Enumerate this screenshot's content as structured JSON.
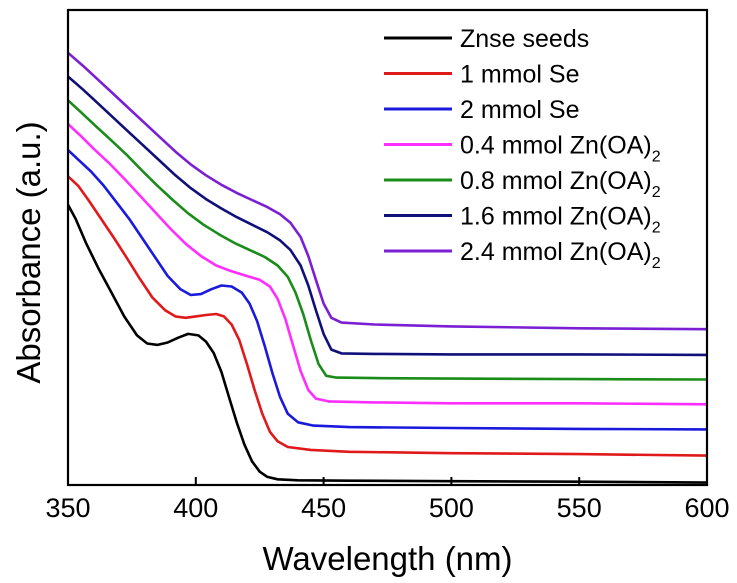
{
  "chart_data": {
    "type": "line",
    "title": "",
    "xlabel": "Wavelength (nm)",
    "ylabel": "Absorbance (a.u.)",
    "xlim": [
      350,
      600
    ],
    "ylim": [
      0,
      10
    ],
    "xticks": [
      350,
      400,
      450,
      500,
      550,
      600
    ],
    "yticks_shown": false,
    "grid": false,
    "legend_position": "top-right",
    "series": [
      {
        "name": "Znse seeds",
        "legend_main": "Znse seeds",
        "legend_sub": "",
        "color": "#000000",
        "points": [
          [
            350,
            5.9
          ],
          [
            353,
            5.6
          ],
          [
            357,
            5.1
          ],
          [
            362,
            4.55
          ],
          [
            367,
            4.05
          ],
          [
            372,
            3.55
          ],
          [
            377,
            3.15
          ],
          [
            381,
            2.98
          ],
          [
            385,
            2.95
          ],
          [
            389,
            3.0
          ],
          [
            393,
            3.1
          ],
          [
            397,
            3.18
          ],
          [
            401,
            3.15
          ],
          [
            404,
            3.02
          ],
          [
            407,
            2.78
          ],
          [
            410,
            2.38
          ],
          [
            413,
            1.85
          ],
          [
            416,
            1.32
          ],
          [
            419,
            0.85
          ],
          [
            422,
            0.5
          ],
          [
            425,
            0.28
          ],
          [
            428,
            0.17
          ],
          [
            432,
            0.12
          ],
          [
            440,
            0.1
          ],
          [
            460,
            0.09
          ],
          [
            500,
            0.08
          ],
          [
            550,
            0.07
          ],
          [
            600,
            0.05
          ]
        ]
      },
      {
        "name": "1 mmol Se",
        "legend_main": "1 mmol Se",
        "legend_sub": "",
        "color": "#e0191b",
        "points": [
          [
            350,
            6.5
          ],
          [
            354,
            6.3
          ],
          [
            358,
            6.0
          ],
          [
            363,
            5.6
          ],
          [
            368,
            5.2
          ],
          [
            373,
            4.78
          ],
          [
            378,
            4.35
          ],
          [
            383,
            3.95
          ],
          [
            388,
            3.68
          ],
          [
            392,
            3.55
          ],
          [
            396,
            3.52
          ],
          [
            400,
            3.55
          ],
          [
            404,
            3.58
          ],
          [
            408,
            3.6
          ],
          [
            411,
            3.55
          ],
          [
            414,
            3.38
          ],
          [
            417,
            3.05
          ],
          [
            420,
            2.55
          ],
          [
            423,
            2.0
          ],
          [
            426,
            1.5
          ],
          [
            429,
            1.12
          ],
          [
            432,
            0.92
          ],
          [
            436,
            0.8
          ],
          [
            445,
            0.74
          ],
          [
            460,
            0.7
          ],
          [
            500,
            0.67
          ],
          [
            550,
            0.65
          ],
          [
            600,
            0.62
          ]
        ]
      },
      {
        "name": "2 mmol Se",
        "legend_main": "2 mmol Se",
        "legend_sub": "",
        "color": "#1a1adc",
        "points": [
          [
            350,
            7.05
          ],
          [
            354,
            6.85
          ],
          [
            359,
            6.6
          ],
          [
            364,
            6.3
          ],
          [
            369,
            5.95
          ],
          [
            374,
            5.6
          ],
          [
            379,
            5.2
          ],
          [
            384,
            4.8
          ],
          [
            389,
            4.4
          ],
          [
            394,
            4.12
          ],
          [
            398,
            4.0
          ],
          [
            402,
            4.02
          ],
          [
            406,
            4.12
          ],
          [
            410,
            4.2
          ],
          [
            414,
            4.18
          ],
          [
            418,
            4.05
          ],
          [
            421,
            3.82
          ],
          [
            424,
            3.45
          ],
          [
            427,
            2.92
          ],
          [
            430,
            2.35
          ],
          [
            433,
            1.85
          ],
          [
            436,
            1.5
          ],
          [
            440,
            1.32
          ],
          [
            446,
            1.25
          ],
          [
            460,
            1.22
          ],
          [
            500,
            1.2
          ],
          [
            550,
            1.18
          ],
          [
            600,
            1.17
          ]
        ]
      },
      {
        "name": "0.4 mmol Zn(OA)2",
        "legend_main": "0.4 mmol Zn(OA)",
        "legend_sub": "2",
        "color": "#ff2dff",
        "points": [
          [
            350,
            7.6
          ],
          [
            355,
            7.35
          ],
          [
            360,
            7.08
          ],
          [
            366,
            6.78
          ],
          [
            372,
            6.45
          ],
          [
            378,
            6.1
          ],
          [
            384,
            5.75
          ],
          [
            390,
            5.4
          ],
          [
            396,
            5.08
          ],
          [
            402,
            4.82
          ],
          [
            408,
            4.62
          ],
          [
            414,
            4.5
          ],
          [
            420,
            4.4
          ],
          [
            425,
            4.32
          ],
          [
            429,
            4.18
          ],
          [
            432,
            3.92
          ],
          [
            435,
            3.5
          ],
          [
            438,
            2.95
          ],
          [
            441,
            2.4
          ],
          [
            444,
            2.0
          ],
          [
            447,
            1.82
          ],
          [
            452,
            1.76
          ],
          [
            470,
            1.74
          ],
          [
            500,
            1.72
          ],
          [
            550,
            1.72
          ],
          [
            600,
            1.7
          ]
        ]
      },
      {
        "name": "0.8 mmol Zn(OA)2",
        "legend_main": "0.8 mmol Zn(OA)",
        "legend_sub": "2",
        "color": "#1a8c1a",
        "points": [
          [
            350,
            8.1
          ],
          [
            355,
            7.85
          ],
          [
            361,
            7.55
          ],
          [
            367,
            7.25
          ],
          [
            373,
            6.95
          ],
          [
            379,
            6.62
          ],
          [
            385,
            6.3
          ],
          [
            391,
            6.0
          ],
          [
            397,
            5.72
          ],
          [
            403,
            5.48
          ],
          [
            409,
            5.28
          ],
          [
            415,
            5.1
          ],
          [
            421,
            4.95
          ],
          [
            427,
            4.8
          ],
          [
            432,
            4.62
          ],
          [
            436,
            4.38
          ],
          [
            439,
            4.05
          ],
          [
            442,
            3.6
          ],
          [
            445,
            3.05
          ],
          [
            448,
            2.55
          ],
          [
            451,
            2.3
          ],
          [
            455,
            2.26
          ],
          [
            470,
            2.25
          ],
          [
            500,
            2.24
          ],
          [
            550,
            2.23
          ],
          [
            600,
            2.22
          ]
        ]
      },
      {
        "name": "1.6 mmol Zn(OA)2",
        "legend_main": "1.6 mmol Zn(OA)",
        "legend_sub": "2",
        "color": "#10107a",
        "points": [
          [
            350,
            8.6
          ],
          [
            356,
            8.32
          ],
          [
            362,
            8.02
          ],
          [
            368,
            7.72
          ],
          [
            374,
            7.42
          ],
          [
            380,
            7.12
          ],
          [
            386,
            6.82
          ],
          [
            392,
            6.52
          ],
          [
            398,
            6.25
          ],
          [
            404,
            6.02
          ],
          [
            410,
            5.82
          ],
          [
            416,
            5.64
          ],
          [
            422,
            5.48
          ],
          [
            428,
            5.32
          ],
          [
            433,
            5.15
          ],
          [
            437,
            4.95
          ],
          [
            441,
            4.62
          ],
          [
            444,
            4.2
          ],
          [
            447,
            3.68
          ],
          [
            450,
            3.18
          ],
          [
            453,
            2.85
          ],
          [
            457,
            2.77
          ],
          [
            470,
            2.76
          ],
          [
            500,
            2.75
          ],
          [
            550,
            2.75
          ],
          [
            600,
            2.74
          ]
        ]
      },
      {
        "name": "2.4 mmol Zn(OA)2",
        "legend_main": "2.4 mmol Zn(OA)",
        "legend_sub": "2",
        "color": "#7b1fd4",
        "points": [
          [
            350,
            9.1
          ],
          [
            356,
            8.82
          ],
          [
            362,
            8.52
          ],
          [
            368,
            8.22
          ],
          [
            374,
            7.92
          ],
          [
            380,
            7.62
          ],
          [
            386,
            7.32
          ],
          [
            392,
            7.02
          ],
          [
            398,
            6.75
          ],
          [
            404,
            6.52
          ],
          [
            410,
            6.32
          ],
          [
            416,
            6.15
          ],
          [
            422,
            6.0
          ],
          [
            428,
            5.85
          ],
          [
            433,
            5.7
          ],
          [
            437,
            5.52
          ],
          [
            441,
            5.22
          ],
          [
            444,
            4.82
          ],
          [
            447,
            4.32
          ],
          [
            450,
            3.82
          ],
          [
            453,
            3.52
          ],
          [
            457,
            3.42
          ],
          [
            470,
            3.38
          ],
          [
            500,
            3.34
          ],
          [
            550,
            3.3
          ],
          [
            600,
            3.28
          ]
        ]
      }
    ]
  }
}
